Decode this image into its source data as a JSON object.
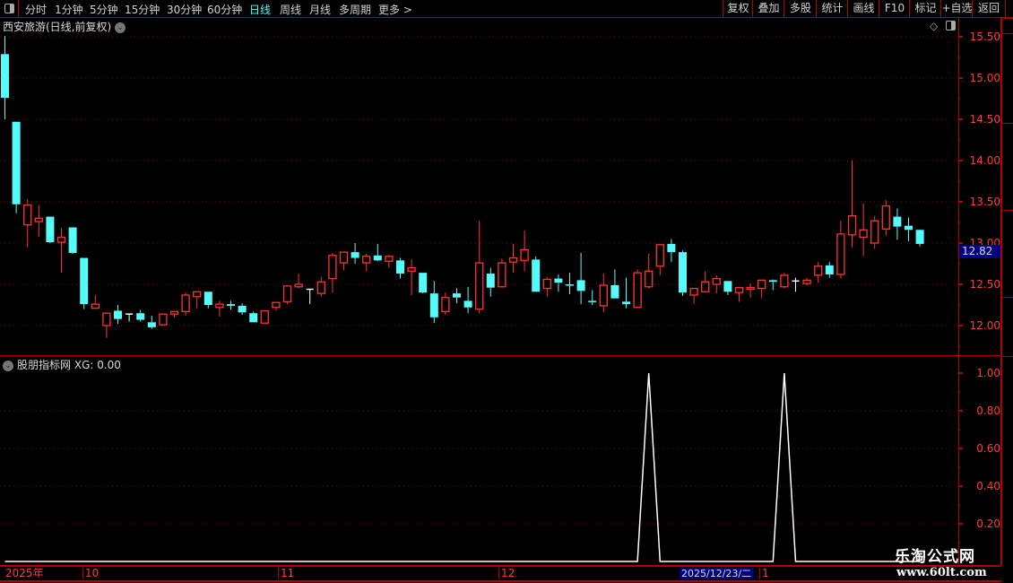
{
  "toolbar": {
    "periods": [
      "分时",
      "1分钟",
      "5分钟",
      "15分钟",
      "30分钟",
      "60分钟",
      "日线",
      "周线",
      "月线",
      "多周期",
      "更多 >"
    ],
    "active_period": "日线",
    "buttons": [
      "复权",
      "叠加",
      "多股",
      "统计",
      "画线",
      "F10",
      "标记",
      "+自选",
      "返回"
    ]
  },
  "chart": {
    "title": "西安旅游(日线,前复权)",
    "price_ticks": [
      "15.50",
      "15.00",
      "14.50",
      "14.00",
      "13.50",
      "13.00",
      "12.50",
      "12.00"
    ],
    "current_price": "12.82",
    "colors": {
      "up": "#ff3232",
      "down": "#54fcfc",
      "flat": "#ffffff",
      "grid": "#8b0000",
      "axis_text": "#ff3c3c"
    },
    "candles_ohlc": [
      [
        15.29,
        15.51,
        14.5,
        14.76
      ],
      [
        14.47,
        14.47,
        13.36,
        13.47
      ],
      [
        13.22,
        13.53,
        12.95,
        13.46
      ],
      [
        13.26,
        13.46,
        13.08,
        13.3
      ],
      [
        13.32,
        13.32,
        13.0,
        13.01
      ],
      [
        13.01,
        13.18,
        12.64,
        13.07
      ],
      [
        13.19,
        13.19,
        12.87,
        12.88
      ],
      [
        12.82,
        12.82,
        12.2,
        12.26
      ],
      [
        12.21,
        12.37,
        12.21,
        12.26
      ],
      [
        12.0,
        12.15,
        11.85,
        12.15
      ],
      [
        12.18,
        12.25,
        12.02,
        12.08
      ],
      [
        12.14,
        12.14,
        12.05,
        12.14
      ],
      [
        12.15,
        12.19,
        12.05,
        12.07
      ],
      [
        12.04,
        12.12,
        11.96,
        11.98
      ],
      [
        12.01,
        12.14,
        12.0,
        12.14
      ],
      [
        12.14,
        12.17,
        12.1,
        12.17
      ],
      [
        12.17,
        12.4,
        12.12,
        12.37
      ],
      [
        12.35,
        12.41,
        12.21,
        12.41
      ],
      [
        12.41,
        12.41,
        12.21,
        12.25
      ],
      [
        12.22,
        12.3,
        12.11,
        12.26
      ],
      [
        12.26,
        12.3,
        12.19,
        12.24
      ],
      [
        12.24,
        12.27,
        12.13,
        12.16
      ],
      [
        12.15,
        12.17,
        12.04,
        12.04
      ],
      [
        12.03,
        12.18,
        12.03,
        12.18
      ],
      [
        12.22,
        12.28,
        12.18,
        12.28
      ],
      [
        12.29,
        12.48,
        12.26,
        12.48
      ],
      [
        12.47,
        12.63,
        12.45,
        12.5
      ],
      [
        12.44,
        12.44,
        12.26,
        12.44
      ],
      [
        12.39,
        12.59,
        12.35,
        12.53
      ],
      [
        12.57,
        12.88,
        12.4,
        12.85
      ],
      [
        12.76,
        12.89,
        12.67,
        12.89
      ],
      [
        12.89,
        13.0,
        12.75,
        12.82
      ],
      [
        12.76,
        12.87,
        12.66,
        12.84
      ],
      [
        12.85,
        12.99,
        12.78,
        12.79
      ],
      [
        12.78,
        12.86,
        12.7,
        12.84
      ],
      [
        12.79,
        12.82,
        12.57,
        12.63
      ],
      [
        12.66,
        12.8,
        12.37,
        12.7
      ],
      [
        12.64,
        12.64,
        12.39,
        12.4
      ],
      [
        12.39,
        12.54,
        12.03,
        12.1
      ],
      [
        12.17,
        12.4,
        12.13,
        12.34
      ],
      [
        12.39,
        12.45,
        12.27,
        12.34
      ],
      [
        12.3,
        12.47,
        12.15,
        12.22
      ],
      [
        12.2,
        13.27,
        12.15,
        12.76
      ],
      [
        12.63,
        12.7,
        12.35,
        12.46
      ],
      [
        12.47,
        12.81,
        12.47,
        12.76
      ],
      [
        12.77,
        12.99,
        12.64,
        12.82
      ],
      [
        12.79,
        13.15,
        12.66,
        12.92
      ],
      [
        12.8,
        12.84,
        12.41,
        12.41
      ],
      [
        12.45,
        12.59,
        12.35,
        12.56
      ],
      [
        12.57,
        12.62,
        12.41,
        12.52
      ],
      [
        12.5,
        12.64,
        12.38,
        12.49
      ],
      [
        12.55,
        12.88,
        12.26,
        12.42
      ],
      [
        12.3,
        12.43,
        12.25,
        12.29
      ],
      [
        12.24,
        12.63,
        12.16,
        12.49
      ],
      [
        12.49,
        12.68,
        12.33,
        12.33
      ],
      [
        12.29,
        12.58,
        12.21,
        12.26
      ],
      [
        12.22,
        12.68,
        12.22,
        12.64
      ],
      [
        12.47,
        12.87,
        12.45,
        12.66
      ],
      [
        12.72,
        12.98,
        12.61,
        12.98
      ],
      [
        12.99,
        13.05,
        12.77,
        12.89
      ],
      [
        12.89,
        12.91,
        12.36,
        12.4
      ],
      [
        12.37,
        12.45,
        12.26,
        12.45
      ],
      [
        12.41,
        12.66,
        12.41,
        12.53
      ],
      [
        12.5,
        12.61,
        12.39,
        12.57
      ],
      [
        12.54,
        12.54,
        12.37,
        12.41
      ],
      [
        12.4,
        12.46,
        12.29,
        12.46
      ],
      [
        12.44,
        12.51,
        12.34,
        12.46
      ],
      [
        12.45,
        12.55,
        12.33,
        12.55
      ],
      [
        12.55,
        12.56,
        12.43,
        12.53
      ],
      [
        12.47,
        12.64,
        12.45,
        12.61
      ],
      [
        12.54,
        12.58,
        12.41,
        12.54
      ],
      [
        12.51,
        12.58,
        12.49,
        12.55
      ],
      [
        12.61,
        12.77,
        12.52,
        12.72
      ],
      [
        12.73,
        12.77,
        12.58,
        12.62
      ],
      [
        12.62,
        13.27,
        12.57,
        13.11
      ],
      [
        13.1,
        14.0,
        12.95,
        13.33
      ],
      [
        13.07,
        13.48,
        12.84,
        13.16
      ],
      [
        13.0,
        13.33,
        12.93,
        13.27
      ],
      [
        13.17,
        13.52,
        13.09,
        13.45
      ],
      [
        13.32,
        13.42,
        13.04,
        13.2
      ],
      [
        13.21,
        13.31,
        13.02,
        13.16
      ],
      [
        13.16,
        13.16,
        12.96,
        12.99
      ]
    ]
  },
  "indicator": {
    "name": "股朋指标网",
    "readout": "XG: 0.00",
    "ticks": [
      "1.00",
      "0.80",
      "0.60",
      "0.40",
      "0.20"
    ],
    "signal_candle_indices": [
      57,
      69
    ]
  },
  "date_axis": {
    "labels": [
      "2025年",
      "10",
      "11",
      "12",
      "1"
    ],
    "cursor_date": "2025/12/23/二"
  },
  "watermark": {
    "line1": "乐淘公式网",
    "line2": "www.60lt.com"
  }
}
